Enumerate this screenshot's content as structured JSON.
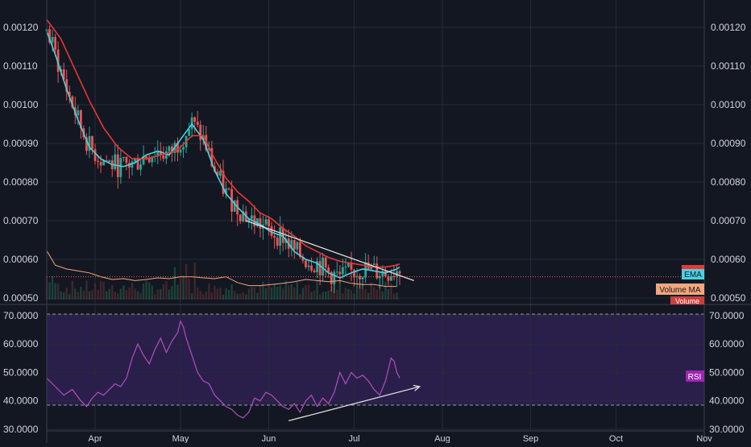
{
  "colors": {
    "background": "#131722",
    "grid": "#262b3a",
    "axis_text": "#d1d4dc",
    "candle_up": "#26a69a",
    "candle_down": "#ef5350",
    "ema_fast": "#4dd0e1",
    "ema_slow": "#e53935",
    "volume_ma": "#f4a77c",
    "rsi_line": "#b04fbf",
    "rsi_band": "#2a1f4a",
    "trendline": "#e0e0e0",
    "price_line": "#ef5350",
    "label_ema_bg": "#4dd0e1",
    "label_volma_bg": "#f4a77c",
    "label_volume_bg": "#c9413f",
    "label_rsi_bg": "#9c27b0"
  },
  "chart_data": [
    {
      "type": "candlestick",
      "x_axis": {
        "tick_labels": [
          "Apr",
          "May",
          "Jun",
          "Jul",
          "Aug",
          "Sep",
          "Oct",
          "Nov"
        ],
        "tick_days": [
          92,
          122,
          153,
          183,
          214,
          245,
          275,
          306
        ],
        "domain_days": [
          75,
          306
        ]
      },
      "y_axis": {
        "tick_labels": [
          "0.00120",
          "0.00110",
          "0.00100",
          "0.00090",
          "0.00080",
          "0.00070",
          "0.00060",
          "0.00050"
        ],
        "tick_values": [
          0.0012,
          0.0011,
          0.001,
          0.0009,
          0.0008,
          0.0007,
          0.0006,
          0.0005
        ],
        "range": [
          0.0005,
          0.00122
        ]
      },
      "grid": true,
      "current_price": 0.000555,
      "series": [
        {
          "name": "EMA",
          "kind": "line",
          "x": [
            75,
            78,
            82,
            86,
            90,
            94,
            98,
            102,
            106,
            110,
            114,
            118,
            122,
            126,
            130,
            134,
            138,
            142,
            146,
            150,
            154,
            158,
            162,
            166,
            170,
            174,
            178,
            182,
            186,
            190,
            194,
            198,
            199
          ],
          "y": [
            0.00119,
            0.00113,
            0.00104,
            0.00096,
            0.00089,
            0.00086,
            0.000845,
            0.00084,
            0.00085,
            0.00087,
            0.00088,
            0.00087,
            0.00091,
            0.00095,
            0.00091,
            0.00083,
            0.00077,
            0.000735,
            0.000705,
            0.00069,
            0.00067,
            0.00066,
            0.00062,
            0.0006,
            0.00059,
            0.000565,
            0.000552,
            0.000565,
            0.000575,
            0.00057,
            0.000565,
            0.000575,
            0.00058
          ]
        },
        {
          "name": "",
          "kind": "line",
          "x": [
            75,
            80,
            85,
            90,
            95,
            100,
            105,
            110,
            115,
            120,
            122,
            126,
            130,
            134,
            138,
            142,
            146,
            150,
            154,
            158,
            162,
            166,
            170,
            174,
            178,
            182,
            186,
            190,
            194,
            198,
            199
          ],
          "y": [
            0.00122,
            0.00117,
            0.00109,
            0.00101,
            0.00094,
            0.00089,
            0.00086,
            0.00086,
            0.00087,
            0.00088,
            0.00089,
            0.00092,
            0.00092,
            0.00086,
            0.00081,
            0.000775,
            0.00075,
            0.00072,
            0.000705,
            0.00068,
            0.00066,
            0.000635,
            0.00062,
            0.000605,
            0.000595,
            0.00059,
            0.000585,
            0.00058,
            0.00058,
            0.000585,
            0.000588
          ]
        },
        {
          "name": "Volume MA",
          "kind": "line",
          "x": [
            75,
            78,
            82,
            86,
            90,
            94,
            98,
            102,
            106,
            110,
            114,
            118,
            122,
            126,
            130,
            134,
            138,
            142,
            146,
            150,
            154,
            158,
            162,
            166,
            170,
            174,
            178,
            182,
            186,
            190,
            194,
            198
          ],
          "y": [
            0.000622,
            0.000585,
            0.000575,
            0.00057,
            0.000565,
            0.000555,
            0.000548,
            0.00055,
            0.000545,
            0.000548,
            0.000552,
            0.00055,
            0.000555,
            0.000555,
            0.000552,
            0.00055,
            0.000555,
            0.00054,
            0.000532,
            0.000532,
            0.000535,
            0.000538,
            0.000542,
            0.000548,
            0.000545,
            0.000542,
            0.000545,
            0.000538,
            0.000535,
            0.000535,
            0.00053,
            0.00053
          ]
        },
        {
          "name": "Volume",
          "kind": "bars"
        }
      ],
      "trendlines": [
        {
          "from": [
            145,
            0.0007
          ],
          "to": [
            204,
            0.000545
          ]
        }
      ]
    },
    {
      "type": "line",
      "x_axis": {
        "domain_days": [
          75,
          306
        ]
      },
      "y_axis": {
        "tick_labels": [
          "70.0000",
          "60.0000",
          "50.0000",
          "40.0000",
          "30.0000"
        ],
        "tick_values": [
          70,
          60,
          50,
          40,
          30
        ],
        "range": [
          29,
          72
        ]
      },
      "band": [
        38.5,
        70.5
      ],
      "grid": true,
      "series": [
        {
          "name": "RSI",
          "x": [
            75,
            78,
            81,
            84,
            87,
            89,
            91,
            93,
            95,
            97,
            99,
            101,
            103,
            105,
            107,
            109,
            111,
            113,
            115,
            117,
            119,
            121,
            122,
            123,
            124,
            126,
            128,
            130,
            132,
            134,
            136,
            138,
            140,
            142,
            144,
            146,
            148,
            150,
            152,
            154,
            156,
            158,
            160,
            162,
            164,
            166,
            168,
            170,
            172,
            174,
            176,
            178,
            180,
            182,
            184,
            186,
            188,
            190,
            192,
            194,
            196,
            197,
            198,
            199
          ],
          "y": [
            48,
            45,
            42,
            44,
            40,
            38,
            41,
            43,
            42,
            44,
            46,
            45,
            48,
            55,
            60,
            56,
            53,
            58,
            62,
            57,
            61,
            64,
            68,
            66,
            62,
            56,
            50,
            47,
            46,
            42,
            40,
            38,
            37,
            35,
            34,
            36,
            41,
            40,
            43,
            42,
            40,
            38,
            37,
            39,
            36,
            40,
            42,
            38,
            41,
            39,
            43,
            50,
            46,
            50,
            48,
            49,
            47,
            44,
            42,
            47,
            55,
            54,
            50,
            48
          ]
        }
      ],
      "trendlines": [
        {
          "from": [
            160,
            33
          ],
          "to": [
            206,
            45
          ]
        }
      ]
    }
  ],
  "labels": {
    "ema": "EMA",
    "volume_ma": "Volume MA",
    "volume": "Volume",
    "rsi": "RSI"
  }
}
